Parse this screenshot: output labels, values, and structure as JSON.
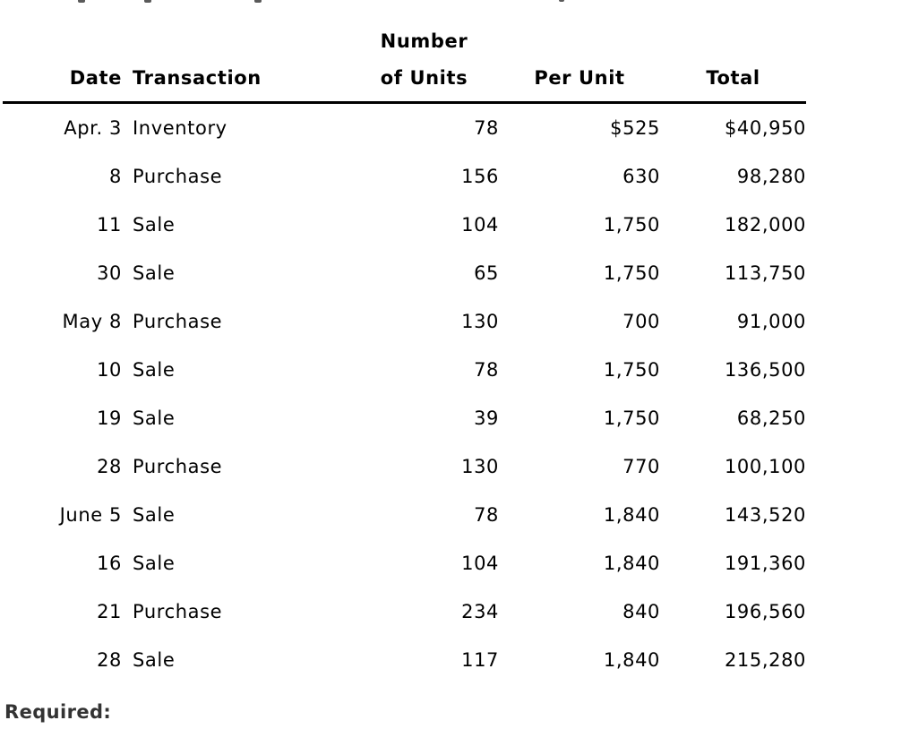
{
  "table": {
    "headers": {
      "date": "Date",
      "transaction": "Transaction",
      "units": "Number\nof Units",
      "per_unit": "Per Unit",
      "total": "Total"
    },
    "rows": [
      {
        "date": "Apr. 3",
        "transaction": "Inventory",
        "units": "78",
        "per_unit": "$525",
        "total": "$40,950"
      },
      {
        "date": "8",
        "transaction": "Purchase",
        "units": "156",
        "per_unit": "630",
        "total": "98,280"
      },
      {
        "date": "11",
        "transaction": "Sale",
        "units": "104",
        "per_unit": "1,750",
        "total": "182,000"
      },
      {
        "date": "30",
        "transaction": "Sale",
        "units": "65",
        "per_unit": "1,750",
        "total": "113,750"
      },
      {
        "date": "May 8",
        "transaction": "Purchase",
        "units": "130",
        "per_unit": "700",
        "total": "91,000"
      },
      {
        "date": "10",
        "transaction": "Sale",
        "units": "78",
        "per_unit": "1,750",
        "total": "136,500"
      },
      {
        "date": "19",
        "transaction": "Sale",
        "units": "39",
        "per_unit": "1,750",
        "total": "68,250"
      },
      {
        "date": "28",
        "transaction": "Purchase",
        "units": "130",
        "per_unit": "770",
        "total": "100,100"
      },
      {
        "date": "June 5",
        "transaction": "Sale",
        "units": "78",
        "per_unit": "1,840",
        "total": "143,520"
      },
      {
        "date": "16",
        "transaction": "Sale",
        "units": "104",
        "per_unit": "1,840",
        "total": "191,360"
      },
      {
        "date": "21",
        "transaction": "Purchase",
        "units": "234",
        "per_unit": "840",
        "total": "196,560"
      },
      {
        "date": "28",
        "transaction": "Sale",
        "units": "117",
        "per_unit": "1,840",
        "total": "215,280"
      }
    ]
  },
  "footer": {
    "required_label": "Required:"
  },
  "colors": {
    "text": "#000000",
    "required_text": "#333333",
    "rule": "#000000",
    "background": "#ffffff"
  }
}
